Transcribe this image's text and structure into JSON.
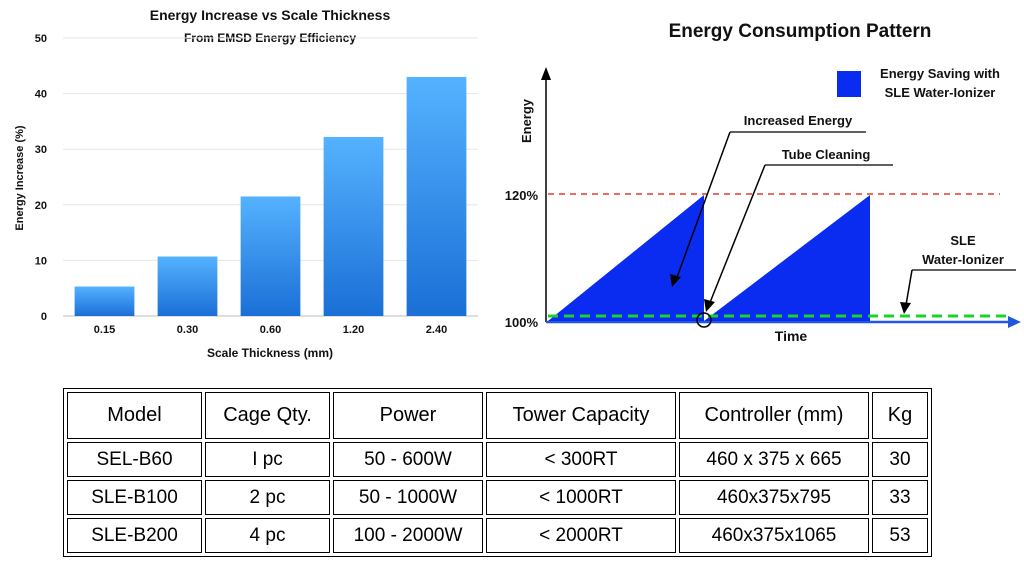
{
  "chart_data": [
    {
      "type": "bar",
      "title": "Energy Increase vs Scale Thickness",
      "subtitle": "From EMSD Energy Efficiency",
      "xlabel": "Scale Thickness (mm)",
      "ylabel": "Energy Increase (%)",
      "categories": [
        "0.15",
        "0.30",
        "0.60",
        "1.20",
        "2.40"
      ],
      "values": [
        5.3,
        10.7,
        21.5,
        32.2,
        43
      ],
      "ylim": [
        0,
        50
      ],
      "yticks": [
        "0",
        "10",
        "20",
        "30",
        "40",
        "50"
      ],
      "color": "#2f8fe8"
    },
    {
      "type": "area",
      "title": "Energy Consumption Pattern",
      "xlabel": "Time",
      "ylabel": "Energy",
      "yticks": [
        "100%",
        "120%"
      ],
      "legend": "Energy Saving with SLE Water-Ionizer",
      "legend_lines": [
        "Energy Saving with",
        "SLE Water-Ionizer"
      ],
      "series": [
        {
          "name": "Energy consumption (sawtooth)",
          "x": [
            0,
            1,
            1,
            1.95,
            1.95
          ],
          "y": [
            100,
            120,
            100,
            120,
            100
          ]
        },
        {
          "name": "120% threshold",
          "style": "dashed-red",
          "y": 120
        },
        {
          "name": "SLE Water-Ionizer",
          "style": "dashed-green",
          "y": 100
        }
      ],
      "annotations": {
        "increased_energy": "Increased Energy",
        "tube_cleaning": "Tube Cleaning",
        "sle_lines": [
          "SLE",
          "Water-Ionizer"
        ]
      },
      "colors": {
        "fill": "#0a2bf0",
        "axis": "#1f57e0",
        "red": "#e53a2a",
        "green": "#19d32b"
      }
    }
  ],
  "table": {
    "headers": [
      "Model",
      "Cage Qty.",
      "Power",
      "Tower Capacity",
      "Controller (mm)",
      "Kg"
    ],
    "rows": [
      [
        "SEL-B60",
        "I pc",
        "50 - 600W",
        "< 300RT",
        "460 x 375 x 665",
        "30"
      ],
      [
        "SLE-B100",
        "2 pc",
        "50 - 1000W",
        "< 1000RT",
        "460x375x795",
        "33"
      ],
      [
        "SLE-B200",
        "4 pc",
        "100 - 2000W",
        "< 2000RT",
        "460x375x1065",
        "53"
      ]
    ]
  }
}
